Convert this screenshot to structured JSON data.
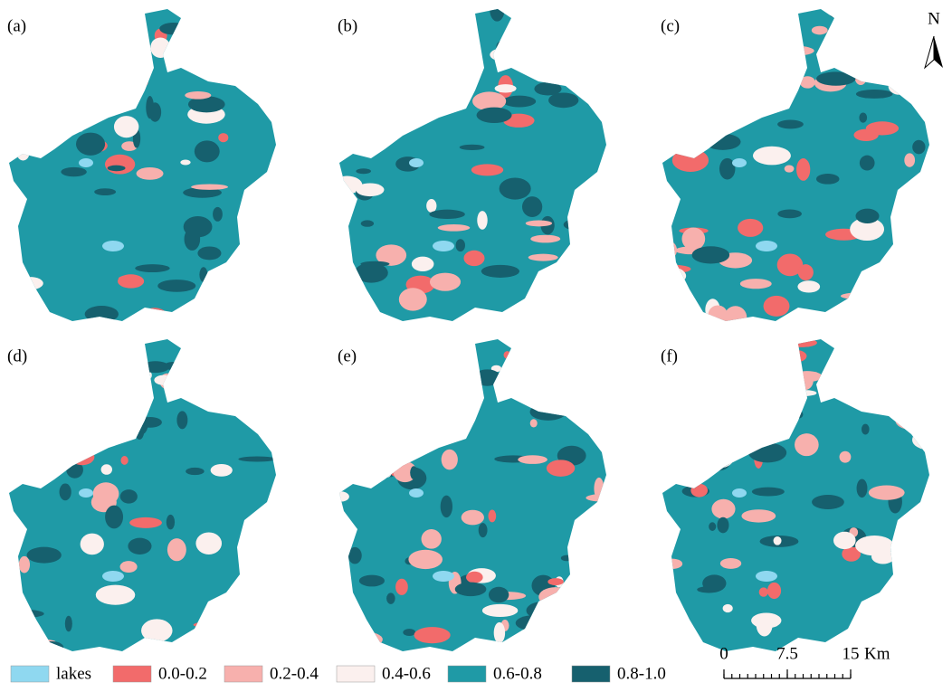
{
  "panels": [
    {
      "label": "(a)"
    },
    {
      "label": "(b)"
    },
    {
      "label": "(c)"
    },
    {
      "label": "(d)"
    },
    {
      "label": "(e)"
    },
    {
      "label": "(f)"
    }
  ],
  "legend": [
    {
      "label": "lakes",
      "color": "#8fd8f0"
    },
    {
      "label": "0.0-0.2",
      "color": "#f26b6b"
    },
    {
      "label": "0.2-0.4",
      "color": "#f7b0ad"
    },
    {
      "label": "0.4-0.6",
      "color": "#fbf0ee"
    },
    {
      "label": "0.6-0.8",
      "color": "#1f9aa6"
    },
    {
      "label": "0.8-1.0",
      "color": "#16606e"
    }
  ],
  "scale_bar": {
    "ticks": [
      0,
      7.5,
      15
    ],
    "unit": "Km"
  },
  "north": "N"
}
